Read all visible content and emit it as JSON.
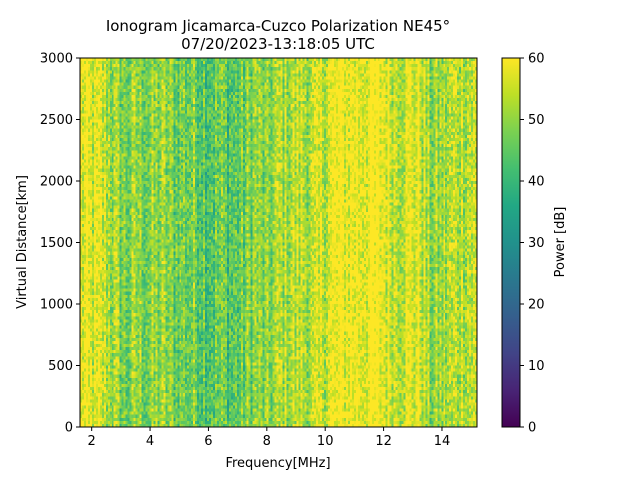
{
  "chart_data": {
    "type": "heatmap",
    "title_line1": "Ionogram Jicamarca-Cuzco Polarization NE45°",
    "title_line2": "07/20/2023-13:18:05 UTC",
    "xlabel": "Frequency[MHz]",
    "ylabel": "Virtual Distance[km]",
    "xlim": [
      1.6,
      15.2
    ],
    "ylim": [
      0,
      3000
    ],
    "x_ticks": [
      2,
      4,
      6,
      8,
      10,
      12,
      14
    ],
    "x_tick_labels": [
      "2",
      "4",
      "6",
      "8",
      "10",
      "12",
      "14"
    ],
    "y_ticks": [
      0,
      500,
      1000,
      1500,
      2000,
      2500,
      3000
    ],
    "y_tick_labels": [
      "0",
      "500",
      "1000",
      "1500",
      "2000",
      "2500",
      "3000"
    ],
    "colorbar": {
      "label": "Power [dB]",
      "range": [
        0,
        60
      ],
      "ticks": [
        0,
        10,
        20,
        30,
        40,
        50,
        60
      ],
      "tick_labels": [
        "0",
        "10",
        "20",
        "30",
        "40",
        "50",
        "60"
      ],
      "colormap": "viridis"
    },
    "approx_power_profile": {
      "description": "approximate mean power (dB) per frequency bin",
      "frequency_mhz": [
        1.6,
        2.0,
        2.4,
        2.8,
        3.2,
        3.6,
        4.0,
        4.4,
        4.8,
        5.2,
        5.6,
        6.0,
        6.4,
        6.8,
        7.2,
        7.6,
        8.0,
        8.4,
        8.8,
        9.2,
        9.6,
        10.0,
        10.4,
        10.8,
        11.2,
        11.6,
        12.0,
        12.4,
        12.8,
        13.2,
        13.6,
        14.0,
        14.4,
        14.8,
        15.2
      ],
      "power_db": [
        58,
        56,
        55,
        50,
        47,
        50,
        48,
        50,
        47,
        48,
        47,
        45,
        46,
        44,
        46,
        50,
        47,
        52,
        53,
        54,
        52,
        56,
        59,
        60,
        60,
        60,
        59,
        56,
        57,
        58,
        49,
        51,
        53,
        55,
        54
      ]
    },
    "grid": false
  }
}
